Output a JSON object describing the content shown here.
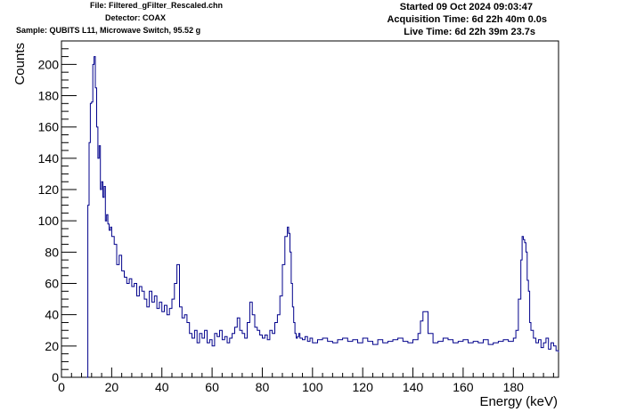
{
  "header": {
    "file": "File: Filtered_gFilter_Rescaled.chn",
    "detector": "Detector: COAX",
    "sample": "Sample: QUBITS L11, Microwave Switch, 95.52 g",
    "started": "Started 09 Oct 2024 09:03:47",
    "acquisition": "Acquisition Time: 6d 22h 40m 0.0s",
    "live": "Live Time: 6d 22h 39m 23.7s"
  },
  "chart_data": {
    "type": "line",
    "title": "",
    "xlabel": "Energy (keV)",
    "ylabel": "Counts",
    "xlim": [
      0,
      198
    ],
    "ylim": [
      0,
      215
    ],
    "xticks": [
      0,
      20,
      40,
      60,
      80,
      100,
      120,
      140,
      160,
      180
    ],
    "yticks": [
      0,
      20,
      40,
      60,
      80,
      100,
      120,
      140,
      160,
      180,
      200
    ],
    "grid": false,
    "legend": "none",
    "line_color": "#00008b",
    "series": [
      {
        "x": [
          10,
          10.5,
          11,
          11.5,
          12,
          12.5,
          13,
          13.5,
          14,
          14.5,
          15,
          15.5,
          16,
          16.5,
          17,
          17.5,
          18,
          18.5,
          19,
          19.5,
          20,
          21,
          22,
          23,
          24,
          25,
          26,
          27,
          28,
          29,
          30,
          31,
          32,
          33,
          34,
          35,
          36,
          37,
          38,
          39,
          40,
          41,
          42,
          43,
          44,
          45,
          46,
          47,
          48,
          49,
          50,
          51,
          52,
          53,
          54,
          55,
          56,
          57,
          58,
          59,
          60,
          61,
          62,
          63,
          64,
          65,
          66,
          67,
          68,
          69,
          70,
          71,
          72,
          73,
          74,
          75,
          76,
          77,
          78,
          79,
          80,
          81,
          82,
          83,
          84,
          85,
          86,
          87,
          88,
          89,
          90,
          90.5,
          91,
          91.5,
          92,
          92.5,
          93,
          93.5,
          94,
          94.5,
          95,
          96,
          97,
          98,
          99,
          100,
          102,
          104,
          106,
          108,
          110,
          112,
          114,
          116,
          118,
          120,
          122,
          124,
          126,
          128,
          130,
          132,
          134,
          136,
          138,
          140,
          142,
          143,
          144,
          146,
          148,
          150,
          152,
          154,
          156,
          158,
          160,
          162,
          164,
          166,
          168,
          170,
          172,
          174,
          176,
          178,
          180,
          181,
          182,
          183,
          183.5,
          184,
          184.5,
          185,
          185.5,
          186,
          186.5,
          187,
          188,
          189,
          190,
          191,
          192,
          193,
          194,
          195,
          196,
          197,
          198
        ],
        "y": [
          0,
          110,
          150,
          175,
          176,
          200,
          205,
          185,
          160,
          140,
          148,
          120,
          125,
          115,
          122,
          100,
          104,
          98,
          94,
          96,
          90,
          85,
          72,
          78,
          68,
          64,
          60,
          63,
          58,
          60,
          52,
          58,
          55,
          50,
          45,
          55,
          48,
          52,
          44,
          48,
          42,
          46,
          40,
          44,
          50,
          60,
          72,
          45,
          38,
          40,
          35,
          28,
          25,
          30,
          22,
          28,
          25,
          30,
          22,
          24,
          20,
          28,
          26,
          30,
          24,
          26,
          22,
          25,
          28,
          32,
          38,
          30,
          28,
          25,
          35,
          48,
          40,
          32,
          30,
          27,
          25,
          27,
          24,
          30,
          28,
          35,
          40,
          52,
          72,
          90,
          96,
          92,
          80,
          60,
          45,
          35,
          28,
          25,
          26,
          28,
          25,
          24,
          26,
          23,
          25,
          22,
          24,
          25,
          23,
          22,
          24,
          25,
          23,
          24,
          22,
          25,
          23,
          21,
          24,
          22,
          23,
          24,
          25,
          23,
          22,
          24,
          28,
          36,
          42,
          28,
          22,
          23,
          25,
          24,
          22,
          23,
          24,
          22,
          23,
          22,
          24,
          21,
          22,
          23,
          24,
          23,
          25,
          30,
          50,
          75,
          90,
          88,
          86,
          80,
          62,
          55,
          35,
          30,
          25,
          22,
          24,
          19,
          22,
          25,
          18,
          22,
          20,
          17,
          16
        ]
      }
    ]
  }
}
